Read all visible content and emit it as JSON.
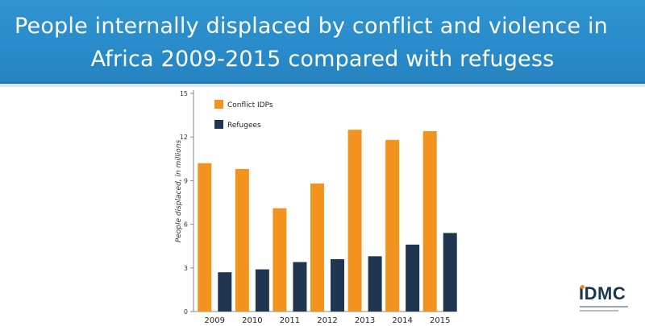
{
  "banner": {
    "line1": "People internally displaced by conflict and violence in",
    "line2": "Africa 2009-2015 compared with refugess",
    "color": "#2a8ccb"
  },
  "logo": {
    "text": "IDMC",
    "accent": "#f08c1a"
  },
  "chart_data": {
    "type": "bar",
    "title": "",
    "xlabel": "",
    "ylabel": "People displaced, in millions",
    "categories": [
      "2009",
      "2010",
      "2011",
      "2012",
      "2013",
      "2014",
      "2015"
    ],
    "series": [
      {
        "name": "Conflict IDPs",
        "color": "#f2931e",
        "values": [
          10.2,
          9.8,
          7.1,
          8.8,
          12.5,
          11.8,
          12.4
        ]
      },
      {
        "name": "Refugees",
        "color": "#1f3550",
        "values": [
          2.7,
          2.9,
          3.4,
          3.6,
          3.8,
          4.6,
          5.4
        ]
      }
    ],
    "ylim": [
      0,
      15
    ],
    "yticks": [
      0,
      3,
      6,
      9,
      12,
      15
    ],
    "grid": false,
    "legend": "top-left"
  }
}
